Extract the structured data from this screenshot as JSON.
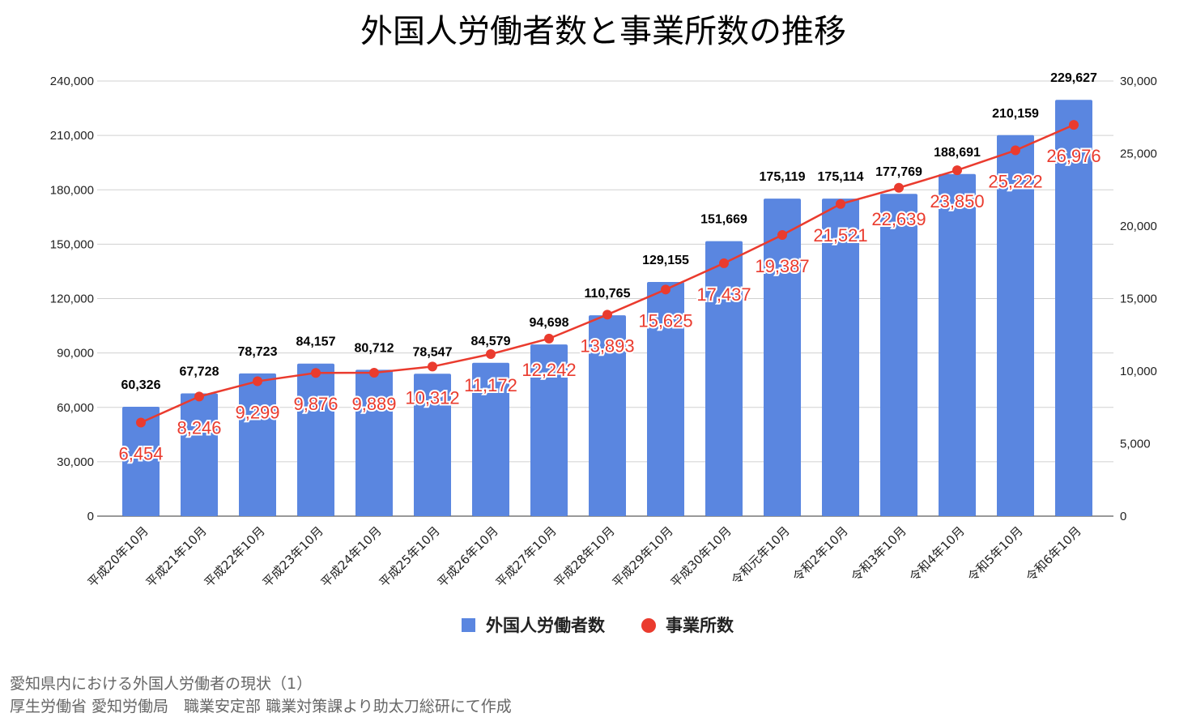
{
  "chart_data": {
    "type": "bar+line",
    "title": "外国人労働者数と事業所数の推移",
    "categories": [
      "平成20年10月",
      "平成21年10月",
      "平成22年10月",
      "平成23年10月",
      "平成24年10月",
      "平成25年10月",
      "平成26年10月",
      "平成27年10月",
      "平成28年10月",
      "平成29年10月",
      "平成30年10月",
      "令和元年10月",
      "令和2年10月",
      "令和3年10月",
      "令和4年10月",
      "令和5年10月",
      "令和6年10月"
    ],
    "series": [
      {
        "name": "外国人労働者数",
        "type": "bar",
        "axis": "left",
        "color": "#5a86e0",
        "values": [
          60326,
          67728,
          78723,
          84157,
          80712,
          78547,
          84579,
          94698,
          110765,
          129155,
          151669,
          175119,
          175114,
          177769,
          188691,
          210159,
          229627
        ]
      },
      {
        "name": "事業所数",
        "type": "line",
        "axis": "right",
        "color": "#ea3b2e",
        "values": [
          6454,
          8246,
          9299,
          9876,
          9889,
          10312,
          11172,
          12242,
          13893,
          15625,
          17437,
          19387,
          21521,
          22639,
          23850,
          25222,
          26976
        ]
      }
    ],
    "y_left": {
      "range": [
        0,
        240000
      ],
      "ticks": [
        0,
        30000,
        60000,
        90000,
        120000,
        150000,
        180000,
        210000,
        240000
      ],
      "tick_labels": [
        "0",
        "30,000",
        "60,000",
        "90,000",
        "120,000",
        "150,000",
        "180,000",
        "210,000",
        "240,000"
      ]
    },
    "y_right": {
      "range": [
        0,
        30000
      ],
      "ticks": [
        0,
        5000,
        10000,
        15000,
        20000,
        25000,
        30000
      ],
      "tick_labels": [
        "0",
        "5,000",
        "10,000",
        "15,000",
        "20,000",
        "25,000",
        "30,000"
      ]
    },
    "grid": true,
    "legend_position": "bottom"
  },
  "source": {
    "line1": "愛知県内における外国人労働者の現状（1）",
    "line2": "厚生労働省 愛知労働局　職業安定部 職業対策課より助太刀総研にて作成"
  }
}
